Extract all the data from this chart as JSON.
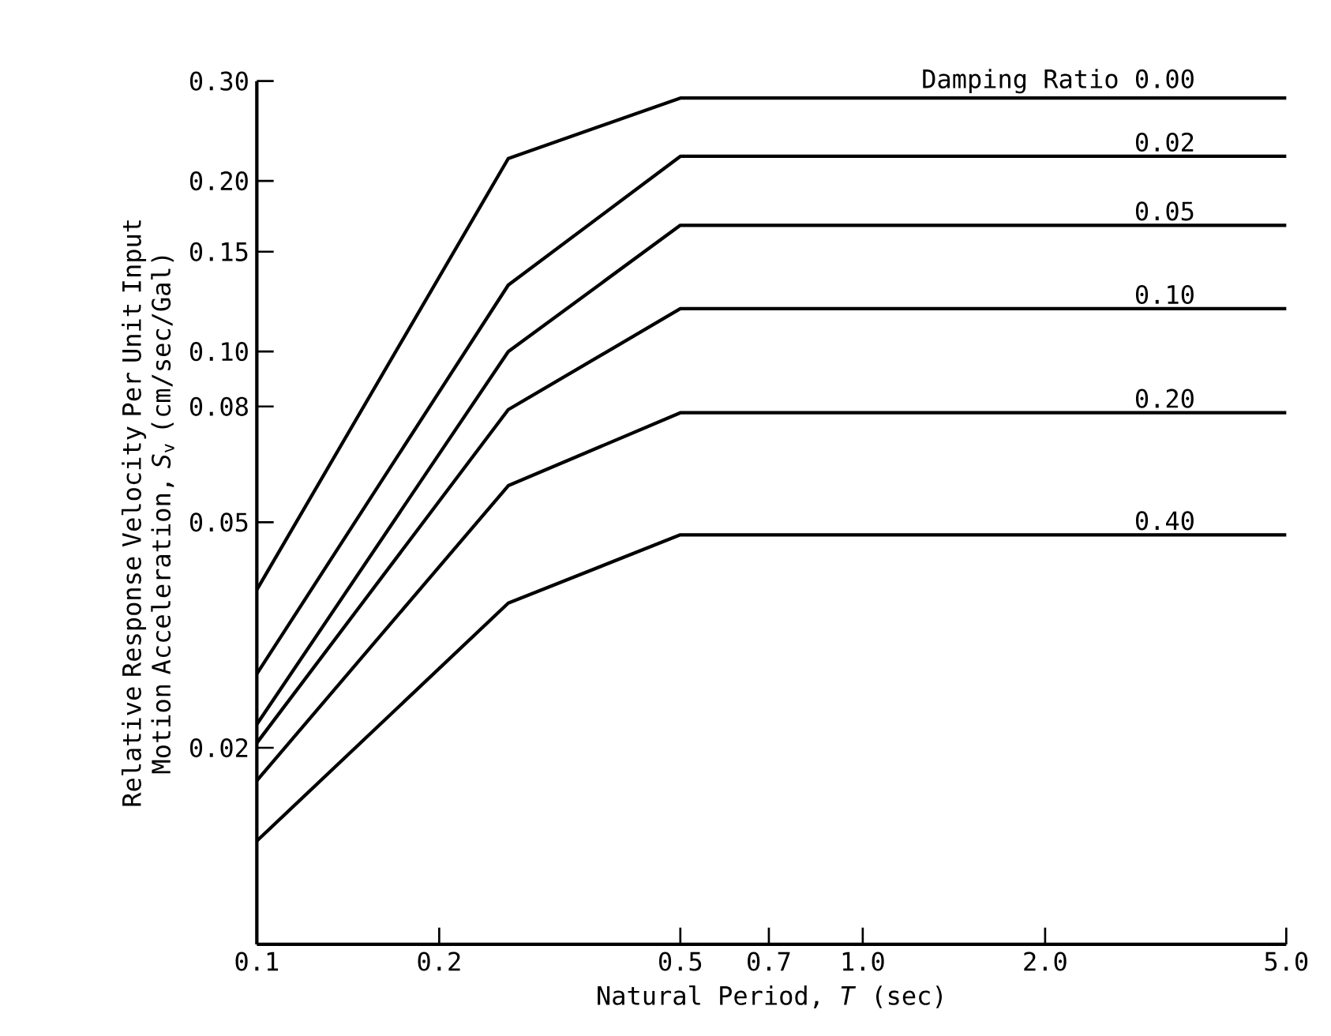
{
  "chart_data": {
    "type": "line",
    "xlabel": "Natural Period, *T* (sec)",
    "ylabel": "Relative Response Velocity Per Unit Input Motion Acceleration, *S*$_{v}$ (cm/sec/Gal)",
    "legend_title": "Damping Ratio",
    "log": "xy",
    "x": [
      0.1,
      0.26,
      0.5,
      5.0
    ],
    "xlim": [
      0.1,
      5.0
    ],
    "ylim": [
      0.009,
      0.3
    ],
    "xticks": [
      0.1,
      0.2,
      0.5,
      0.7,
      {
        "value": 1.0,
        "label": "1.0"
      },
      {
        "value": 2.0,
        "label": "2.0"
      },
      {
        "value": 5.0,
        "label": "5.0"
      }
    ],
    "yticks": [
      {
        "value": 0.3,
        "label": "0.30"
      },
      {
        "value": 0.2,
        "label": "0.20"
      },
      0.15,
      {
        "value": 0.1,
        "label": "0.10"
      },
      0.08,
      0.05,
      0.02
    ],
    "grid": false,
    "legend": false,
    "marker": "none",
    "line_style": "solid",
    "series": [
      {
        "name": "0.00",
        "color": "#000000",
        "values": [
          0.038,
          0.219,
          0.28,
          0.28
        ]
      },
      {
        "name": "0.02",
        "color": "#000000",
        "values": [
          0.027,
          0.131,
          0.221,
          0.221
        ]
      },
      {
        "name": "0.05",
        "color": "#000000",
        "values": [
          0.022,
          0.1,
          0.167,
          0.167
        ]
      },
      {
        "name": "0.10",
        "color": "#000000",
        "values": [
          0.0204,
          0.079,
          0.119,
          0.119
        ]
      },
      {
        "name": "0.20",
        "color": "#000000",
        "values": [
          0.0175,
          0.058,
          0.078,
          0.078
        ]
      },
      {
        "name": "0.40",
        "color": "#000000",
        "values": [
          0.0137,
          0.036,
          0.0475,
          0.0475
        ]
      }
    ]
  }
}
